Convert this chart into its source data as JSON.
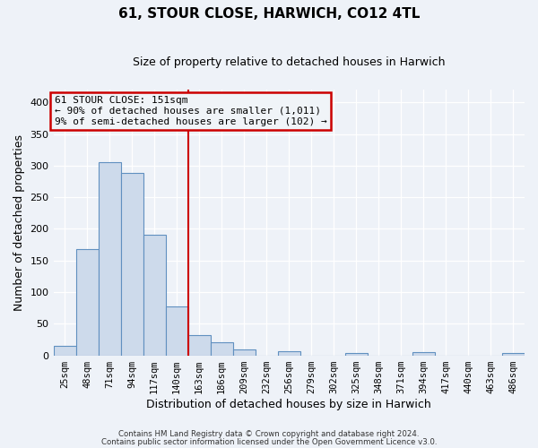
{
  "title": "61, STOUR CLOSE, HARWICH, CO12 4TL",
  "subtitle": "Size of property relative to detached houses in Harwich",
  "xlabel": "Distribution of detached houses by size in Harwich",
  "ylabel": "Number of detached properties",
  "bin_labels": [
    "25sqm",
    "48sqm",
    "71sqm",
    "94sqm",
    "117sqm",
    "140sqm",
    "163sqm",
    "186sqm",
    "209sqm",
    "232sqm",
    "256sqm",
    "279sqm",
    "302sqm",
    "325sqm",
    "348sqm",
    "371sqm",
    "394sqm",
    "417sqm",
    "440sqm",
    "463sqm",
    "486sqm"
  ],
  "bar_values": [
    15,
    168,
    305,
    288,
    191,
    78,
    32,
    20,
    10,
    0,
    6,
    0,
    0,
    4,
    0,
    0,
    5,
    0,
    0,
    0,
    3
  ],
  "bar_color": "#cddaeb",
  "bar_edge_color": "#6090c0",
  "vline_x": 5.5,
  "vline_color": "#cc0000",
  "annotation_title": "61 STOUR CLOSE: 151sqm",
  "annotation_line1": "← 90% of detached houses are smaller (1,011)",
  "annotation_line2": "9% of semi-detached houses are larger (102) →",
  "annotation_box_color": "#cc0000",
  "annotation_bg": "#f0f4f8",
  "ylim": [
    0,
    420
  ],
  "yticks": [
    0,
    50,
    100,
    150,
    200,
    250,
    300,
    350,
    400
  ],
  "footnote1": "Contains HM Land Registry data © Crown copyright and database right 2024.",
  "footnote2": "Contains public sector information licensed under the Open Government Licence v3.0.",
  "background_color": "#eef2f8",
  "grid_color": "#ffffff",
  "title_fontsize": 11,
  "subtitle_fontsize": 9,
  "tick_fontsize": 7.5,
  "axis_label_fontsize": 9
}
